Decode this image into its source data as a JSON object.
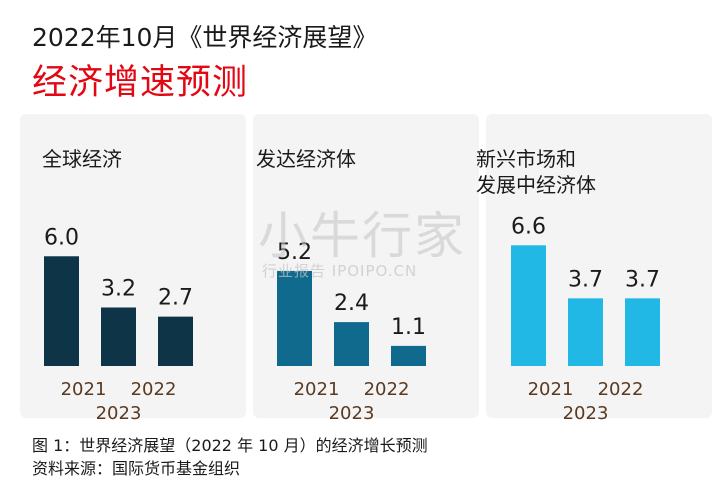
{
  "header": {
    "title": "2022年10月《世界经济展望》",
    "subtitle": "经济增速预测"
  },
  "watermark": {
    "text": "小牛行家",
    "sub": "行业报告 IPOIPO.CN"
  },
  "colors": {
    "accent_title": "#e30613",
    "panel_bg": "#f4f4f4",
    "series_colors": [
      "#0d3447",
      "#0f6a8e",
      "#21b8e6"
    ],
    "year_label": "#5a3a20"
  },
  "chart_data": [
    {
      "type": "bar",
      "title": "全球经济",
      "categories": [
        "2021",
        "2022",
        "2023"
      ],
      "values": [
        6.0,
        3.2,
        2.7
      ],
      "value_labels": [
        "6.0",
        "3.2",
        "2.7"
      ],
      "color": "#0d3447",
      "ylim": [
        0,
        7
      ]
    },
    {
      "type": "bar",
      "title": "发达经济体",
      "categories": [
        "2021",
        "2022",
        "2023"
      ],
      "values": [
        5.2,
        2.4,
        1.1
      ],
      "value_labels": [
        "5.2",
        "2.4",
        "1.1"
      ],
      "color": "#0f6a8e",
      "ylim": [
        0,
        7
      ]
    },
    {
      "type": "bar",
      "title": "新兴市场和\n发展中经济体",
      "categories": [
        "2021",
        "2022",
        "2023"
      ],
      "values": [
        6.6,
        3.7,
        3.7
      ],
      "value_labels": [
        "6.6",
        "3.7",
        "3.7"
      ],
      "color": "#21b8e6",
      "ylim": [
        0,
        7
      ]
    }
  ],
  "caption": {
    "figure": "图 1：世界经济展望（2022 年 10 月）的经济增长预测",
    "source": "资料来源：国际货币基金组织"
  }
}
